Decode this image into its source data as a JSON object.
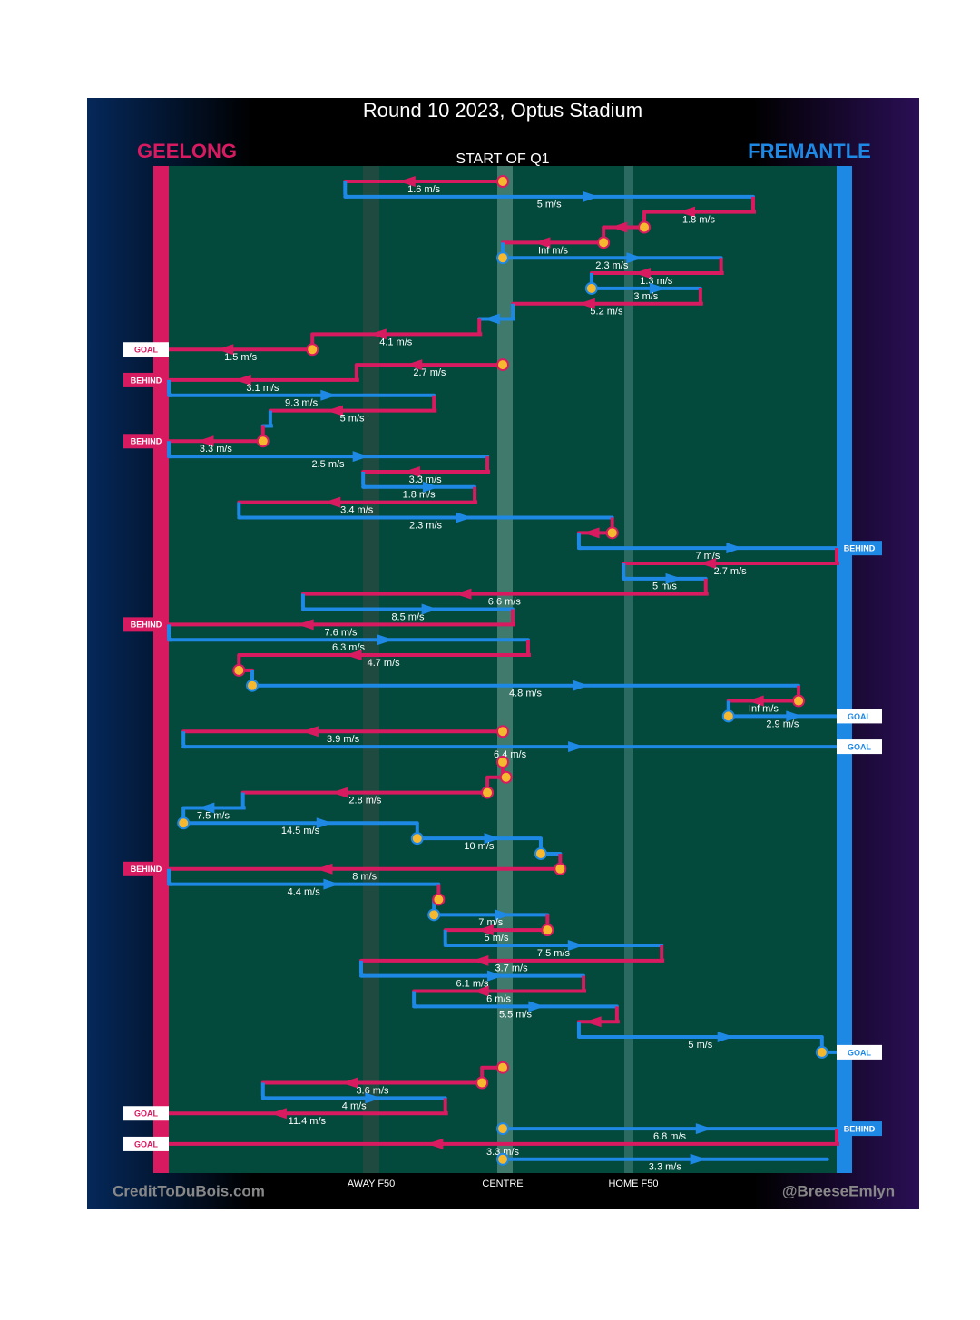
{
  "title": "Round 10 2023, Optus Stadium",
  "start": "START OF Q1",
  "teams": [
    {
      "name": "GEELONG",
      "color": "#d81b60"
    },
    {
      "name": "FREMANTLE",
      "color": "#1e88e5"
    }
  ],
  "field_labels": [
    "AWAY F50",
    "CENTRE",
    "HOME F50"
  ],
  "footer_left": "CreditToDuBois.com",
  "footer_right": "@BreeseEmlyn",
  "rows": [
    {
      "team": 0,
      "from": 50,
      "to": 26.4,
      "speed": "1.6 m/s",
      "stoppage": true
    },
    {
      "team": 1,
      "from": 26.4,
      "to": 87.5,
      "speed": "5 m/s"
    },
    {
      "team": 0,
      "from": 87.5,
      "to": 71.2,
      "speed": "1.8 m/s"
    },
    {
      "team": 0,
      "from": 71.2,
      "to": 65.1,
      "stoppage": true
    },
    {
      "team": 0,
      "from": 65.1,
      "to": 50,
      "speed": "Inf m/s",
      "stoppage": true
    },
    {
      "team": 1,
      "from": 50,
      "to": 82.7,
      "speed": "2.3 m/s",
      "stoppage": true
    },
    {
      "team": 0,
      "from": 82.7,
      "to": 63.3,
      "speed": "1.3 m/s"
    },
    {
      "team": 1,
      "from": 63.3,
      "to": 79.6,
      "speed": "3 m/s",
      "stoppage": true
    },
    {
      "team": 0,
      "from": 79.6,
      "to": 51.5,
      "speed": "5.2 m/s"
    },
    {
      "team": 1,
      "from": 51.5,
      "to": 46.5
    },
    {
      "team": 0,
      "from": 46.5,
      "to": 21.5,
      "speed": "4.1 m/s"
    },
    {
      "team": 0,
      "from": 21.5,
      "to": 0,
      "speed": "1.5 m/s",
      "outcome": "GOAL",
      "stoppage": true
    },
    {
      "team": 0,
      "from": 50,
      "to": 28.1,
      "speed": "2.7 m/s",
      "stoppage": true
    },
    {
      "team": 0,
      "from": 28.1,
      "to": 0,
      "speed": "3.1 m/s",
      "outcome": "BEHIND"
    },
    {
      "team": 1,
      "from": 0,
      "to": 39.7,
      "speed": "9.3 m/s"
    },
    {
      "team": 0,
      "from": 39.7,
      "to": 15.2,
      "speed": "5 m/s"
    },
    {
      "team": 1,
      "from": 15.2,
      "to": 14.1
    },
    {
      "team": 0,
      "from": 14.1,
      "to": 0,
      "speed": "3.3 m/s",
      "outcome": "BEHIND",
      "stoppage": true
    },
    {
      "team": 1,
      "from": 0,
      "to": 47.7,
      "speed": "2.5 m/s"
    },
    {
      "team": 0,
      "from": 47.7,
      "to": 29.1,
      "speed": "3.3 m/s"
    },
    {
      "team": 1,
      "from": 29.1,
      "to": 45.8,
      "speed": "1.8 m/s"
    },
    {
      "team": 0,
      "from": 45.8,
      "to": 10.5,
      "speed": "3.4 m/s"
    },
    {
      "team": 1,
      "from": 10.5,
      "to": 66.4,
      "speed": "2.3 m/s"
    },
    {
      "team": 0,
      "from": 66.4,
      "to": 61.4,
      "stoppage": true
    },
    {
      "team": 1,
      "from": 61.4,
      "to": 100,
      "speed": "7 m/s",
      "outcome": "BEHIND"
    },
    {
      "team": 0,
      "from": 100,
      "to": 68.1,
      "speed": "2.7 m/s"
    },
    {
      "team": 1,
      "from": 68.1,
      "to": 80.4,
      "speed": "5 m/s"
    },
    {
      "team": 0,
      "from": 80.4,
      "to": 20.1,
      "speed": "6.6 m/s"
    },
    {
      "team": 1,
      "from": 20.1,
      "to": 51.5,
      "speed": "8.5 m/s"
    },
    {
      "team": 0,
      "from": 51.5,
      "to": 0,
      "speed": "7.6 m/s",
      "outcome": "BEHIND"
    },
    {
      "team": 1,
      "from": 0,
      "to": 53.8,
      "speed": "6.3 m/s"
    },
    {
      "team": 0,
      "from": 53.8,
      "to": 10.5,
      "speed": "4.7 m/s"
    },
    {
      "team": 0,
      "from": 10.5,
      "to": 12.5,
      "stoppage": true
    },
    {
      "team": 1,
      "from": 12.5,
      "to": 94.3,
      "speed": "4.8 m/s",
      "stoppage": true
    },
    {
      "team": 0,
      "from": 94.3,
      "to": 83.8,
      "speed": "Inf m/s",
      "stoppage": true
    },
    {
      "team": 1,
      "from": 83.8,
      "to": 100,
      "speed": "2.9 m/s",
      "outcome": "GOAL",
      "stoppage": true
    },
    {
      "team": 0,
      "from": 50,
      "to": 2.2,
      "speed": "3.9 m/s",
      "stoppage": true
    },
    {
      "team": 1,
      "from": 2.2,
      "to": 100,
      "speed": "6.4 m/s",
      "outcome": "GOAL"
    },
    {
      "team": 0,
      "from": 50,
      "to": 50,
      "stoppage": true
    },
    {
      "team": 0,
      "from": 50.5,
      "to": 47.7,
      "stoppage": true
    },
    {
      "team": 0,
      "from": 47.7,
      "to": 11.1,
      "speed": "2.8 m/s",
      "stoppage": true
    },
    {
      "team": 1,
      "from": 11.1,
      "to": 2.2,
      "speed": "7.5 m/s"
    },
    {
      "team": 1,
      "from": 2.2,
      "to": 37.2,
      "speed": "14.5 m/s",
      "stoppage": true
    },
    {
      "team": 1,
      "from": 37.2,
      "to": 55.7,
      "speed": "10 m/s",
      "stoppage": true
    },
    {
      "team": 1,
      "from": 55.7,
      "to": 58.6,
      "stoppage": true
    },
    {
      "team": 0,
      "from": 58.6,
      "to": 0,
      "speed": "8 m/s",
      "outcome": "BEHIND",
      "stoppage": true
    },
    {
      "team": 1,
      "from": 0,
      "to": 40.4,
      "speed": "4.4 m/s"
    },
    {
      "team": 0,
      "from": 40.4,
      "to": 39.7,
      "stoppage": true
    },
    {
      "team": 1,
      "from": 39.7,
      "to": 56.7,
      "speed": "7 m/s",
      "stoppage": true
    },
    {
      "team": 0,
      "from": 56.7,
      "to": 41.4,
      "speed": "5 m/s",
      "stoppage": true
    },
    {
      "team": 1,
      "from": 41.4,
      "to": 73.8,
      "speed": "7.5 m/s"
    },
    {
      "team": 0,
      "from": 73.8,
      "to": 28.8,
      "speed": "3.7 m/s"
    },
    {
      "team": 1,
      "from": 28.8,
      "to": 62.1,
      "speed": "6.1 m/s"
    },
    {
      "team": 0,
      "from": 62.1,
      "to": 36.7,
      "speed": "6 m/s"
    },
    {
      "team": 1,
      "from": 36.7,
      "to": 67.1,
      "speed": "5.5 m/s"
    },
    {
      "team": 0,
      "from": 67.1,
      "to": 61.4
    },
    {
      "team": 1,
      "from": 61.4,
      "to": 97.8,
      "speed": "5 m/s"
    },
    {
      "team": 1,
      "from": 97.8,
      "to": 100,
      "outcome": "GOAL",
      "stoppage": true
    },
    {
      "team": 0,
      "from": 50,
      "to": 46.9,
      "stoppage": true
    },
    {
      "team": 0,
      "from": 46.9,
      "to": 14.1,
      "speed": "3.6 m/s",
      "stoppage": true
    },
    {
      "team": 1,
      "from": 14.1,
      "to": 41.4,
      "speed": "4 m/s"
    },
    {
      "team": 0,
      "from": 41.4,
      "to": 0,
      "speed": "11.4 m/s",
      "outcome": "GOAL"
    },
    {
      "team": 1,
      "from": 50,
      "to": 100,
      "speed": "6.8 m/s",
      "outcome": "BEHIND",
      "stoppage": true
    },
    {
      "team": 0,
      "from": 100,
      "to": 0,
      "speed": "3.3 m/s",
      "outcome": "GOAL"
    },
    {
      "team": 1,
      "from": 50,
      "to": 98.6,
      "speed": "3.3 m/s",
      "stoppage": true
    }
  ]
}
